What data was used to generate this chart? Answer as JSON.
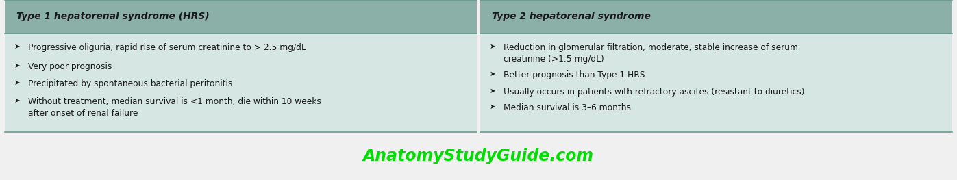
{
  "header_bg_color": "#8ab0a8",
  "body_bg_color": "#d6e6e2",
  "outer_bg_color": "#f0f0f0",
  "header_text_color": "#1a1a1a",
  "body_text_color": "#1a1a1a",
  "watermark_color": "#00dd00",
  "border_color": "#6a9a90",
  "col1_header": "Type 1 hepatorenal syndrome (HRS)",
  "col2_header": "Type 2 hepatorenal syndrome",
  "col1_bullets": [
    "Progressive oliguria, rapid rise of serum creatinine to > 2.5 mg/dL",
    "Very poor prognosis",
    "Precipitated by spontaneous bacterial peritonitis",
    "Without treatment, median survival is <1 month, die within 10 weeks\nafter onset of renal failure"
  ],
  "col2_bullets": [
    "Reduction in glomerular filtration, moderate, stable increase of serum\ncreatinine (>1.5 mg/dL)",
    "Better prognosis than Type 1 HRS",
    "Usually occurs in patients with refractory ascites (resistant to diuretics)",
    "Median survival is 3–6 months"
  ],
  "watermark": "AnatomyStudyGuide.com",
  "figwidth": 13.97,
  "figheight": 2.63,
  "dpi": 100
}
